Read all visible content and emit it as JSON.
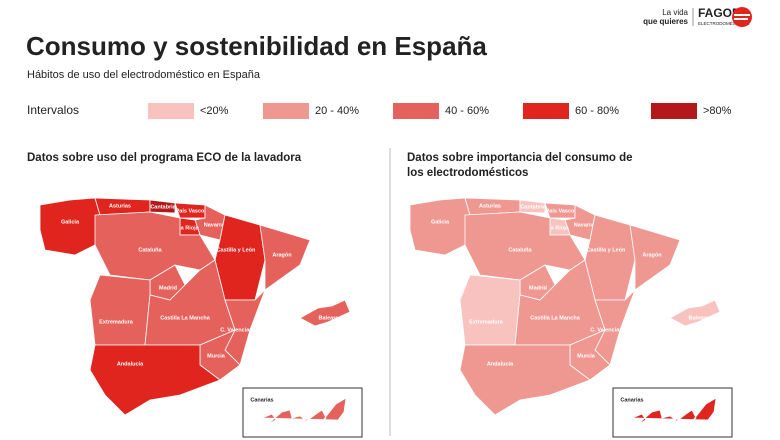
{
  "header": {
    "title": "Consumo y sostenibilidad en España",
    "subtitle": "Hábitos de uso del electrodoméstico en España",
    "logo": {
      "tagline_1": "La vida",
      "tagline_2": "que quieres",
      "brand": "FAGOR",
      "brand_sub": "ELECTRODOMÉSTICOS"
    }
  },
  "legend": {
    "title": "Intervalos",
    "items": [
      {
        "label": "<20%",
        "color": "#f8c3bf"
      },
      {
        "label": "20 - 40%",
        "color": "#ef9891"
      },
      {
        "label": "40 - 60%",
        "color": "#e5625c"
      },
      {
        "label": "60 - 80%",
        "color": "#e0251f"
      },
      {
        "label": ">80%",
        "color": "#b3191a"
      }
    ]
  },
  "maps": [
    {
      "title": "Datos sobre uso del programa ECO de la lavadora",
      "regions": [
        {
          "name": "Galicia",
          "color": "#e0251f"
        },
        {
          "name": "Asturias",
          "color": "#e0251f"
        },
        {
          "name": "Cantabria",
          "color": "#b3191a"
        },
        {
          "name": "País Vasco",
          "color": "#e0251f"
        },
        {
          "name": "Navarra",
          "color": "#e5625c"
        },
        {
          "name": "La Rioja",
          "color": "#e0251f"
        },
        {
          "name": "Castilla y León",
          "color": "#e0251f"
        },
        {
          "name": "Aragón",
          "color": "#e5625c"
        },
        {
          "name": "Cataluña",
          "color": "#e5625c"
        },
        {
          "name": "Madrid",
          "color": "#e5625c"
        },
        {
          "name": "Extremadura",
          "color": "#e5625c"
        },
        {
          "name": "Castilla La Mancha",
          "color": "#e5625c"
        },
        {
          "name": "C. Valenciana",
          "color": "#e5625c"
        },
        {
          "name": "Murcia",
          "color": "#e5625c"
        },
        {
          "name": "Andalucía",
          "color": "#e0251f"
        },
        {
          "name": "Baleares",
          "color": "#e5625c"
        },
        {
          "name": "Canarias",
          "color": "#e5625c"
        }
      ]
    },
    {
      "title": "Datos sobre importancia del consumo de los electrodomésticos",
      "regions": [
        {
          "name": "Galicia",
          "color": "#ef9891"
        },
        {
          "name": "Asturias",
          "color": "#ef9891"
        },
        {
          "name": "Cantabria",
          "color": "#f8c3bf"
        },
        {
          "name": "País Vasco",
          "color": "#ef9891"
        },
        {
          "name": "Navarra",
          "color": "#ef9891"
        },
        {
          "name": "La Rioja",
          "color": "#f8c3bf"
        },
        {
          "name": "Castilla y León",
          "color": "#ef9891"
        },
        {
          "name": "Aragón",
          "color": "#ef9891"
        },
        {
          "name": "Cataluña",
          "color": "#ef9891"
        },
        {
          "name": "Madrid",
          "color": "#ef9891"
        },
        {
          "name": "Extremadura",
          "color": "#f8c3bf"
        },
        {
          "name": "Castilla La Mancha",
          "color": "#ef9891"
        },
        {
          "name": "C. Valenciana",
          "color": "#ef9891"
        },
        {
          "name": "Murcia",
          "color": "#ef9891"
        },
        {
          "name": "Andalucía",
          "color": "#ef9891"
        },
        {
          "name": "Baleares",
          "color": "#f8c3bf"
        },
        {
          "name": "Canarias",
          "color": "#e0251f"
        }
      ]
    }
  ]
}
